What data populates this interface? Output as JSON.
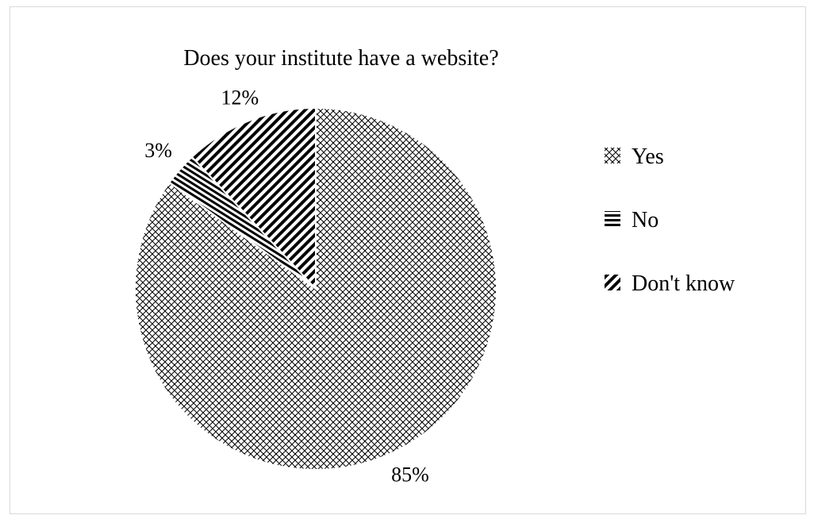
{
  "chart_data": {
    "type": "pie",
    "title": "Does your institute have a website?",
    "categories": [
      "Yes",
      "No",
      "Don't know"
    ],
    "values": [
      85,
      3,
      12
    ],
    "data_labels": [
      "85%",
      "3%",
      "12%"
    ],
    "start_angle_deg": 0,
    "direction": "clockwise",
    "legend": {
      "placement": "right",
      "entries": [
        "Yes",
        "No",
        "Don't know"
      ]
    },
    "patterns": [
      "crosshatch-dotted",
      "horizontal-lines",
      "diagonal-lines"
    ],
    "colors": {
      "ink": "#000000",
      "background": "#ffffff",
      "border": "#d9d9d9"
    }
  }
}
